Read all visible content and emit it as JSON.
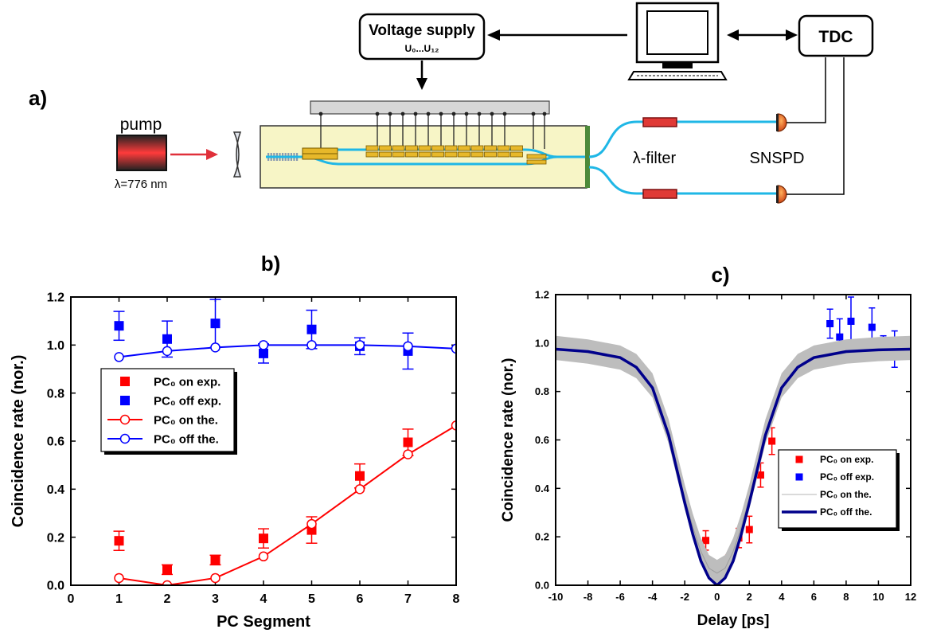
{
  "panel_a": {
    "label": "a)",
    "voltage_supply": "Voltage supply",
    "voltage_range": "U₀...U₁₂",
    "tdc": "TDC",
    "pump": "pump",
    "wavelength": "λ=776 nm",
    "filter": "λ-filter",
    "detector": "SNSPD",
    "colors": {
      "waveguide": "#1fb7e6",
      "chip": "#f7f5c6",
      "laser": "#e0303a",
      "pad": "#e7b82a"
    }
  },
  "panel_b": {
    "label": "b)"
  },
  "panel_c": {
    "label": "c)"
  },
  "chart_data": [
    {
      "type": "scatter",
      "xlabel": "PC Segment",
      "ylabel": "Coincidence rate (nor.)",
      "xlim": [
        0,
        8
      ],
      "ylim": [
        0,
        1.2
      ],
      "xticks": [
        "0",
        "1",
        "2",
        "3",
        "4",
        "5",
        "6",
        "7",
        "8"
      ],
      "yticks": [
        "0.0",
        "0.2",
        "0.4",
        "0.6",
        "0.8",
        "1.0",
        "1.2"
      ],
      "legend_position": "left-center",
      "series": [
        {
          "name": "PC₀ on exp.",
          "color": "#ff0000",
          "marker": "square",
          "x": [
            1,
            2,
            3,
            4,
            5,
            6,
            7
          ],
          "y": [
            0.185,
            0.065,
            0.105,
            0.195,
            0.23,
            0.455,
            0.595
          ],
          "err": [
            0.04,
            0.02,
            0.02,
            0.04,
            0.055,
            0.05,
            0.055
          ]
        },
        {
          "name": "PC₀ off  exp.",
          "color": "#0000ff",
          "marker": "square",
          "x": [
            1,
            2,
            3,
            4,
            5,
            6,
            7
          ],
          "y": [
            1.08,
            1.025,
            1.09,
            0.965,
            1.065,
            0.995,
            0.975
          ],
          "err": [
            0.06,
            0.075,
            0.1,
            0.04,
            0.08,
            0.035,
            0.075
          ]
        },
        {
          "name": "PC₀ on the.",
          "color": "#ff0000",
          "marker": "circle-open",
          "x": [
            1,
            2,
            3,
            4,
            5,
            6,
            7,
            8
          ],
          "y": [
            0.03,
            0.0,
            0.03,
            0.12,
            0.255,
            0.4,
            0.545,
            0.665
          ]
        },
        {
          "name": "PC₀ off the.",
          "color": "#0000ff",
          "marker": "circle-open",
          "x": [
            1,
            2,
            3,
            4,
            5,
            6,
            7,
            8
          ],
          "y": [
            0.95,
            0.975,
            0.99,
            1.0,
            1.0,
            1.0,
            0.995,
            0.985
          ]
        }
      ]
    },
    {
      "type": "scatter",
      "xlabel": "Delay [ps]",
      "ylabel": "Coincidence rate (nor.)",
      "xlim": [
        -10,
        12
      ],
      "ylim": [
        0,
        1.2
      ],
      "xticks": [
        "-10",
        "-8",
        "-6",
        "-4",
        "-2",
        "0",
        "2",
        "4",
        "6",
        "8",
        "10",
        "12"
      ],
      "yticks": [
        "0.0",
        "0.2",
        "0.4",
        "0.6",
        "0.8",
        "1.0",
        "1.2"
      ],
      "legend_position": "right-center",
      "series": [
        {
          "name": "PC₀ on exp.",
          "color": "#ff0000",
          "marker": "square",
          "x": [
            -0.7,
            0,
            0.7,
            1.35,
            2.0,
            2.7,
            3.4
          ],
          "y": [
            0.185,
            0.065,
            0.105,
            0.195,
            0.23,
            0.455,
            0.595
          ],
          "err": [
            0.04,
            0.02,
            0.02,
            0.04,
            0.055,
            0.05,
            0.055
          ]
        },
        {
          "name": "PC₀ off exp.",
          "color": "#0000ff",
          "marker": "square",
          "x": [
            7.0,
            7.6,
            8.3,
            9.0,
            9.6,
            10.3,
            11.0
          ],
          "y": [
            1.08,
            1.025,
            1.09,
            0.965,
            1.065,
            0.995,
            0.975
          ],
          "err": [
            0.06,
            0.075,
            0.1,
            0.04,
            0.08,
            0.035,
            0.075
          ]
        },
        {
          "name": "PC₀ on the.",
          "color": "#aaaaaa",
          "marker": "band",
          "x": [
            -10,
            -8,
            -6,
            -5,
            -4,
            -3,
            -2,
            -1.5,
            -1,
            -0.5,
            0,
            0.5,
            1,
            1.5,
            2,
            3,
            4,
            5,
            6,
            8,
            10,
            12
          ],
          "y": [
            0.975,
            0.96,
            0.935,
            0.9,
            0.82,
            0.63,
            0.36,
            0.24,
            0.14,
            0.07,
            0.05,
            0.07,
            0.14,
            0.24,
            0.36,
            0.63,
            0.82,
            0.9,
            0.935,
            0.96,
            0.97,
            0.975
          ]
        },
        {
          "name": "PC₀ off the.",
          "color": "#00008b",
          "marker": "line",
          "x": [
            -10,
            -8,
            -6,
            -5,
            -4,
            -3,
            -2,
            -1.5,
            -1,
            -0.5,
            0,
            0.5,
            1,
            1.5,
            2,
            3,
            4,
            5,
            6,
            8,
            10,
            12
          ],
          "y": [
            0.975,
            0.965,
            0.94,
            0.9,
            0.815,
            0.62,
            0.34,
            0.21,
            0.1,
            0.03,
            0.0,
            0.03,
            0.1,
            0.21,
            0.34,
            0.62,
            0.815,
            0.9,
            0.94,
            0.965,
            0.972,
            0.975
          ]
        }
      ]
    }
  ]
}
